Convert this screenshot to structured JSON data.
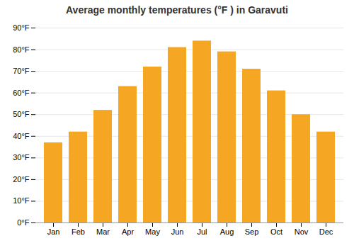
{
  "chart_data": {
    "type": "bar",
    "title": "Average monthly temperatures (°F ) in Garavuti",
    "categories": [
      "Jan",
      "Feb",
      "Mar",
      "Apr",
      "May",
      "Jun",
      "Jul",
      "Aug",
      "Sep",
      "Oct",
      "Nov",
      "Dec"
    ],
    "values": [
      37,
      42,
      52,
      63,
      72,
      81,
      84,
      79,
      71,
      61,
      50,
      42
    ],
    "color": "#F5A623",
    "ylim": [
      0,
      90
    ],
    "yticks": [
      {
        "value": 0,
        "label": "0°F"
      },
      {
        "value": 10,
        "label": "10°F"
      },
      {
        "value": 20,
        "label": "20°F"
      },
      {
        "value": 30,
        "label": "30°F"
      },
      {
        "value": 40,
        "label": "40°F"
      },
      {
        "value": 50,
        "label": "50°F"
      },
      {
        "value": 60,
        "label": "60°F"
      },
      {
        "value": 70,
        "label": "70°F"
      },
      {
        "value": 80,
        "label": "80°F"
      },
      {
        "value": 90,
        "label": "90°F"
      }
    ],
    "grid": true
  }
}
